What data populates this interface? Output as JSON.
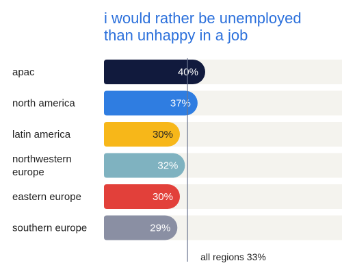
{
  "title": {
    "line1": "i would rather be unemployed",
    "line2": "than unhappy in a job"
  },
  "chart_data": {
    "type": "bar",
    "orientation": "horizontal",
    "title": "i would rather be unemployed than unhappy in a job",
    "categories": [
      [
        "apac"
      ],
      [
        "north america"
      ],
      [
        "latin america"
      ],
      [
        "northwestern",
        "europe"
      ],
      [
        "eastern europe"
      ],
      [
        "southern europe"
      ]
    ],
    "values": [
      40,
      37,
      30,
      32,
      30,
      29
    ],
    "value_labels": [
      "40%",
      "37%",
      "30%",
      "32%",
      "30%",
      "29%"
    ],
    "colors": [
      "#111a3d",
      "#2f7de1",
      "#f7b719",
      "#7fb2c0",
      "#e2403a",
      "#8a8fa3"
    ],
    "label_colors": [
      "#ffffff",
      "#ffffff",
      "#222222",
      "#ffffff",
      "#ffffff",
      "#ffffff"
    ],
    "track_color": "#f4f3ee",
    "reference_line": {
      "value": 33,
      "label": "all regions 33%",
      "color": "#6b7690"
    },
    "xlim": [
      0,
      100
    ],
    "grid": false,
    "legend": "none"
  }
}
